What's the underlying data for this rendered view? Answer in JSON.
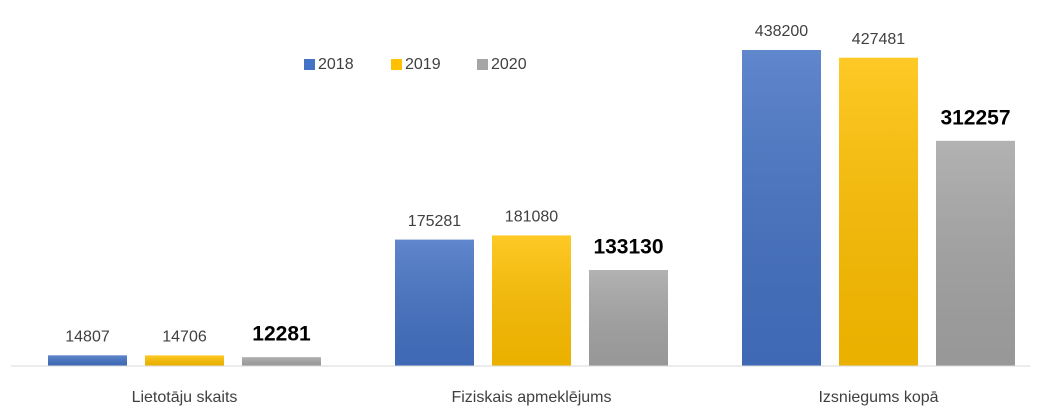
{
  "chart_data": {
    "type": "bar",
    "categories": [
      "Lietotāju skaits",
      "Fiziskais apmeklējums",
      "Izsniegums kopā"
    ],
    "series": [
      {
        "name": "2018",
        "color": "#4472c4",
        "values": [
          14807,
          175281,
          438200
        ],
        "bold_labels": false
      },
      {
        "name": "2019",
        "color": "#ffc000",
        "values": [
          14706,
          181080,
          427481
        ],
        "bold_labels": false
      },
      {
        "name": "2020",
        "color": "#a5a5a5",
        "values": [
          12281,
          133130,
          312257
        ],
        "bold_labels": true
      }
    ],
    "ylim": [
      0,
      450000
    ],
    "legend": "top",
    "grid": false
  }
}
